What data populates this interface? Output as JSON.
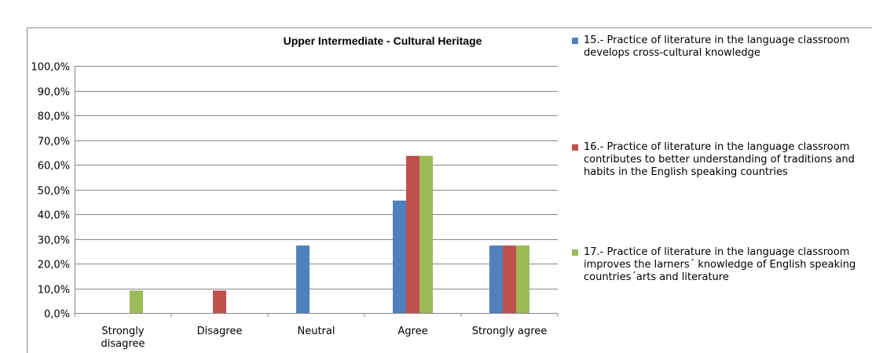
{
  "chart_data": {
    "type": "bar",
    "title": "Upper Intermediate - Cultural Heritage",
    "categories": [
      "Strongly disagree",
      "Disagree",
      "Neutral",
      "Agree",
      "Strongly agree"
    ],
    "series": [
      {
        "name": "15.- Practice of literature in the language classroom develops cross-cultural knowledge",
        "color": "#4f81bd",
        "values": [
          0,
          0,
          27.3,
          45.5,
          27.3
        ]
      },
      {
        "name": "16.- Practice of literature in the language classroom contributes to better understanding of traditions and habits in the English speaking countries",
        "color": "#c0504d",
        "values": [
          0,
          9.1,
          0,
          63.6,
          27.3
        ]
      },
      {
        "name": "17.- Practice of literature in the language classroom improves the larners´ knowledge of English speaking countries´arts and literature",
        "color": "#9bbb59",
        "values": [
          9.1,
          0,
          0,
          63.6,
          27.3
        ]
      }
    ],
    "ylim": [
      0,
      100
    ],
    "yticks": [
      {
        "value": 0,
        "label": "0,0%"
      },
      {
        "value": 10,
        "label": "10,0%"
      },
      {
        "value": 20,
        "label": "20,0%"
      },
      {
        "value": 30,
        "label": "30,0%"
      },
      {
        "value": 40,
        "label": "40,0%"
      },
      {
        "value": 50,
        "label": "50,0%"
      },
      {
        "value": 60,
        "label": "60,0%"
      },
      {
        "value": 70,
        "label": "70,0%"
      },
      {
        "value": 80,
        "label": "80,0%"
      },
      {
        "value": 90,
        "label": "90,0%"
      },
      {
        "value": 100,
        "label": "100,0%"
      }
    ],
    "grid": true,
    "legend": "right"
  }
}
